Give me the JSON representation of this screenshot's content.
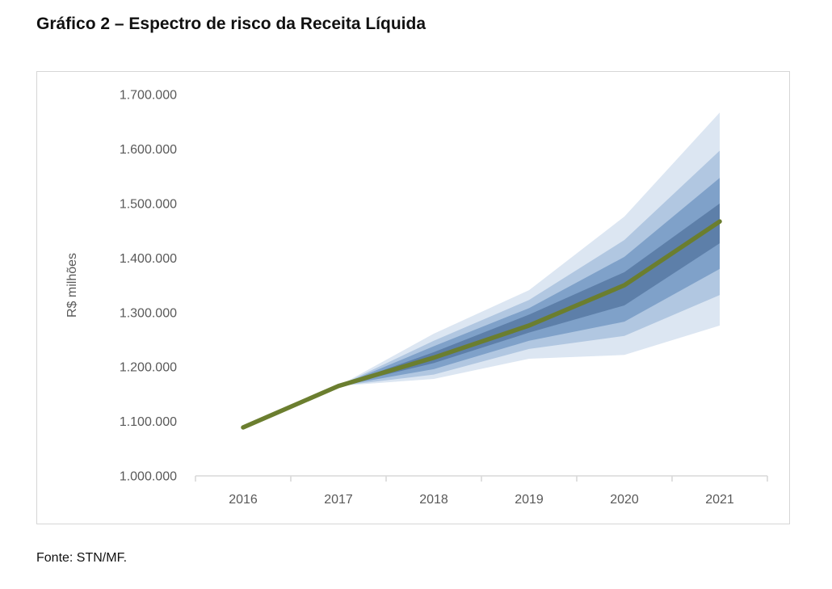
{
  "page": {
    "title": "Gráfico 2 – Espectro de risco da Receita Líquida",
    "source": "Fonte: STN/MF."
  },
  "chart_data": {
    "type": "area",
    "subtype": "fan-chart",
    "title": "Gráfico 2 – Espectro de risco da Receita Líquida",
    "xlabel": "",
    "ylabel": "R$ milhões",
    "grid": false,
    "legend": "none",
    "x_categories": [
      "2016",
      "2017",
      "2018",
      "2019",
      "2020",
      "2021"
    ],
    "ylim": [
      1000000,
      1700000
    ],
    "y_ticks": {
      "labels": [
        "1.700.000",
        "1.600.000",
        "1.500.000",
        "1.400.000",
        "1.300.000",
        "1.200.000",
        "1.100.000",
        "1.000.000"
      ],
      "values": [
        1700000,
        1600000,
        1500000,
        1400000,
        1300000,
        1200000,
        1100000,
        1000000
      ]
    },
    "central_series": {
      "name": "receita-liquida-central",
      "x": [
        2016,
        2017,
        2018,
        2019,
        2020,
        2021
      ],
      "values": [
        1089000,
        1165000,
        1217000,
        1276000,
        1350000,
        1467000
      ],
      "color": "#6b7e2f"
    },
    "bands": [
      {
        "name": "band-outer",
        "color": "#dce6f2",
        "x": [
          2017,
          2018,
          2019,
          2020,
          2021
        ],
        "upper": [
          1165000,
          1261000,
          1341000,
          1476000,
          1667000
        ],
        "lower": [
          1165000,
          1178000,
          1215000,
          1222000,
          1276000
        ]
      },
      {
        "name": "band-2",
        "color": "#b1c7e1",
        "x": [
          2017,
          2018,
          2019,
          2020,
          2021
        ],
        "upper": [
          1165000,
          1248000,
          1323000,
          1433000,
          1597000
        ],
        "lower": [
          1165000,
          1186000,
          1233000,
          1257000,
          1332000
        ]
      },
      {
        "name": "band-3",
        "color": "#7fa1c9",
        "x": [
          2017,
          2018,
          2019,
          2020,
          2021
        ],
        "upper": [
          1165000,
          1238000,
          1308000,
          1402000,
          1547000
        ],
        "lower": [
          1165000,
          1196000,
          1248000,
          1283000,
          1380000
        ]
      },
      {
        "name": "band-inner",
        "color": "#5d7fa9",
        "x": [
          2017,
          2018,
          2019,
          2020,
          2021
        ],
        "upper": [
          1165000,
          1227000,
          1296000,
          1374000,
          1500000
        ],
        "lower": [
          1165000,
          1207000,
          1263000,
          1313000,
          1427000
        ]
      }
    ],
    "axis_color": "#d9d9d9",
    "tick_label_color": "#595959"
  }
}
